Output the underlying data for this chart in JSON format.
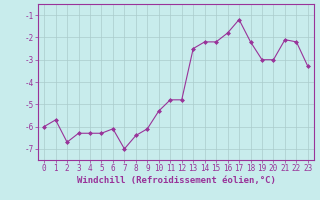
{
  "xlabel": "Windchill (Refroidissement éolien,°C)",
  "x": [
    0,
    1,
    2,
    3,
    4,
    5,
    6,
    7,
    8,
    9,
    10,
    11,
    12,
    13,
    14,
    15,
    16,
    17,
    18,
    19,
    20,
    21,
    22,
    23
  ],
  "y": [
    -6.0,
    -5.7,
    -6.7,
    -6.3,
    -6.3,
    -6.3,
    -6.1,
    -7.0,
    -6.4,
    -6.1,
    -5.3,
    -4.8,
    -4.8,
    -2.5,
    -2.2,
    -2.2,
    -1.8,
    -1.2,
    -2.2,
    -3.0,
    -3.0,
    -2.1,
    -2.2,
    -3.3
  ],
  "line_color": "#993399",
  "marker": "D",
  "marker_size": 2.0,
  "bg_color": "#c8ecec",
  "grid_color": "#aacccc",
  "ylim": [
    -7.5,
    -0.5
  ],
  "xlim": [
    -0.5,
    23.5
  ],
  "yticks": [
    -7,
    -6,
    -5,
    -4,
    -3,
    -2,
    -1
  ],
  "xticks": [
    0,
    1,
    2,
    3,
    4,
    5,
    6,
    7,
    8,
    9,
    10,
    11,
    12,
    13,
    14,
    15,
    16,
    17,
    18,
    19,
    20,
    21,
    22,
    23
  ],
  "tick_label_color": "#993399",
  "tick_label_fontsize": 5.5,
  "xlabel_fontsize": 6.5,
  "xlabel_color": "#993399",
  "spine_color": "#993399",
  "line_width": 0.8
}
